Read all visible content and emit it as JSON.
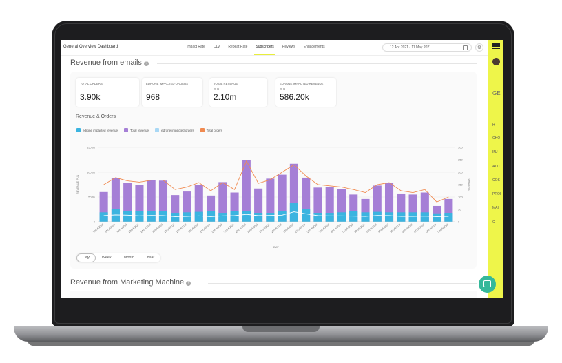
{
  "header": {
    "app_title": "General Overview Dashboard",
    "tabs": [
      {
        "label": "Impact Rate",
        "active": false
      },
      {
        "label": "CLV",
        "active": false
      },
      {
        "label": "Repeat Rate",
        "active": false
      },
      {
        "label": "Subscribers",
        "active": true
      },
      {
        "label": "Reviews",
        "active": false
      },
      {
        "label": "Engagements",
        "active": false
      }
    ],
    "date_range": "12 Apr 2021  -  11 May 2021"
  },
  "sidebar": {
    "brand_initials": "GE",
    "items": [
      {
        "label": "H",
        "icon": "home-icon"
      },
      {
        "label": "CHO",
        "icon": ""
      },
      {
        "label": "INJ",
        "icon": "arrow-icon"
      },
      {
        "label": "ATTI",
        "icon": ""
      },
      {
        "label": "COS",
        "icon": ""
      },
      {
        "label": "PROI",
        "icon": ""
      },
      {
        "label": "MAI",
        "icon": ""
      },
      {
        "label": "C",
        "icon": "send-icon"
      }
    ]
  },
  "section1": {
    "title": "Revenue from emails"
  },
  "kpis": [
    {
      "label": "TOTAL ORDERS",
      "sub": "",
      "value": "3.90k"
    },
    {
      "label": "EDRONE IMPACTED ORDERS",
      "sub": "",
      "value": "968"
    },
    {
      "label": "TOTAL REVENUE",
      "sub": "PLN",
      "value": "2.10m"
    },
    {
      "label": "EDRONE IMPACTED REVENUE",
      "sub": "PLN",
      "value": "586.20k"
    }
  ],
  "chart_title": "Revenue & Orders",
  "colors": {
    "impacted_revenue": "#3bb4e0",
    "total_revenue": "#a57fd6",
    "impacted_orders": "#a9d8f5",
    "total_orders": "#f08a50",
    "sidebar": "#eef54a",
    "active_tab": "#e8ee3c",
    "chat": "#35b89a"
  },
  "chart_data": {
    "type": "bar",
    "xlabel": "DAY",
    "ylabel": "REVENUE PLN",
    "y2label": "ORDERS",
    "ylim": [
      0,
      150000
    ],
    "y_ticks": [
      "0",
      "50.0k",
      "100.0k",
      "150.0k"
    ],
    "y2lim": [
      0,
      300
    ],
    "y2_ticks": [
      "0",
      "50",
      "100",
      "150",
      "200",
      "250",
      "300"
    ],
    "categories": [
      "10/04/2021",
      "11/04/2021",
      "12/04/2021",
      "13/04/2021",
      "14/04/2021",
      "15/04/2021",
      "16/04/2021",
      "17/04/2021",
      "18/04/2021",
      "19/04/2021",
      "20/04/2021",
      "21/04/2021",
      "22/04/2021",
      "23/04/2021",
      "24/04/2021",
      "25/04/2021",
      "26/04/2021",
      "27/04/2021",
      "28/04/2021",
      "29/04/2021",
      "30/04/2021",
      "01/05/2021",
      "02/05/2021",
      "03/05/2021",
      "04/05/2021",
      "05/05/2021",
      "06/05/2021",
      "07/05/2021",
      "08/05/2021",
      "09/05/2021"
    ],
    "series": [
      {
        "name": "edrone impacted revenue",
        "kind": "bar",
        "axis": "left",
        "values": [
          19000,
          25000,
          22000,
          21000,
          21000,
          22000,
          18000,
          19000,
          20000,
          21000,
          18000,
          22000,
          22000,
          18000,
          18000,
          21000,
          38000,
          25000,
          18000,
          18000,
          19000,
          21000,
          19000,
          20000,
          19000,
          19000,
          19000,
          19000,
          17000,
          18000
        ]
      },
      {
        "name": "Total revenue",
        "kind": "bar",
        "axis": "left",
        "values": [
          60000,
          88000,
          78000,
          74000,
          84000,
          83000,
          54000,
          61000,
          74000,
          53000,
          80000,
          59000,
          124000,
          67000,
          87000,
          95000,
          117000,
          89000,
          69000,
          70000,
          66000,
          55000,
          46000,
          73000,
          79000,
          57000,
          55000,
          59000,
          32000,
          46000
        ]
      },
      {
        "name": "edrone impacted orders",
        "kind": "line",
        "axis": "right",
        "values": [
          25,
          28,
          27,
          24,
          26,
          25,
          21,
          22,
          24,
          21,
          24,
          25,
          30,
          25,
          26,
          27,
          40,
          32,
          25,
          24,
          24,
          23,
          22,
          26,
          25,
          22,
          22,
          23,
          21,
          22
        ]
      },
      {
        "name": "Total orders",
        "kind": "line",
        "axis": "right",
        "values": [
          150,
          178,
          165,
          160,
          168,
          168,
          130,
          140,
          158,
          125,
          158,
          130,
          245,
          155,
          170,
          200,
          230,
          185,
          150,
          145,
          140,
          130,
          118,
          150,
          158,
          125,
          118,
          130,
          80,
          100
        ]
      }
    ]
  },
  "periods": [
    {
      "label": "Day",
      "active": true
    },
    {
      "label": "Week",
      "active": false
    },
    {
      "label": "Month",
      "active": false
    },
    {
      "label": "Year",
      "active": false
    }
  ],
  "section2": {
    "title": "Revenue from Marketing Machine"
  }
}
